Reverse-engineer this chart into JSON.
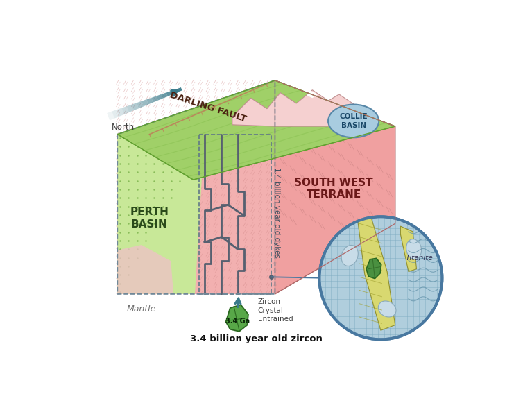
{
  "bg_color": "#ffffff",
  "darling_fault_label": "DARLING FAULT",
  "perth_basin_label": "PERTH\nBASIN",
  "south_west_label": "SOUTH WEST\nTERRANE",
  "collie_basin_label": "COLLIE\nBASIN",
  "mantle_label": "Mantle",
  "zircon_label": "3.4 billion year old zircon",
  "dykes_label": "1.4 billion year old dykes",
  "north_label": "North",
  "zircon_crystal_label": "Zircon\nCrystal\nEntrained",
  "titanite_label": "Titanite",
  "zircon_age_label": "3.4 Ga",
  "c_green_top": "#a0d068",
  "c_green_top2": "#88c050",
  "c_perth_green": "#c8e898",
  "c_perth_deep": "#d0e8a8",
  "c_sw_pink": "#f2b0b0",
  "c_sw_side": "#f0a0a0",
  "c_dyke": "#566070",
  "c_collie": "#a8cce0",
  "c_circle_bg": "#b0cedd",
  "c_yellow_vein": "#d8d870",
  "c_green_crystal": "#4a9040",
  "c_arrow": "#3a7a8a",
  "c_mountain": "#f5d0d0",
  "c_pink_fold": "#f0c0c8"
}
